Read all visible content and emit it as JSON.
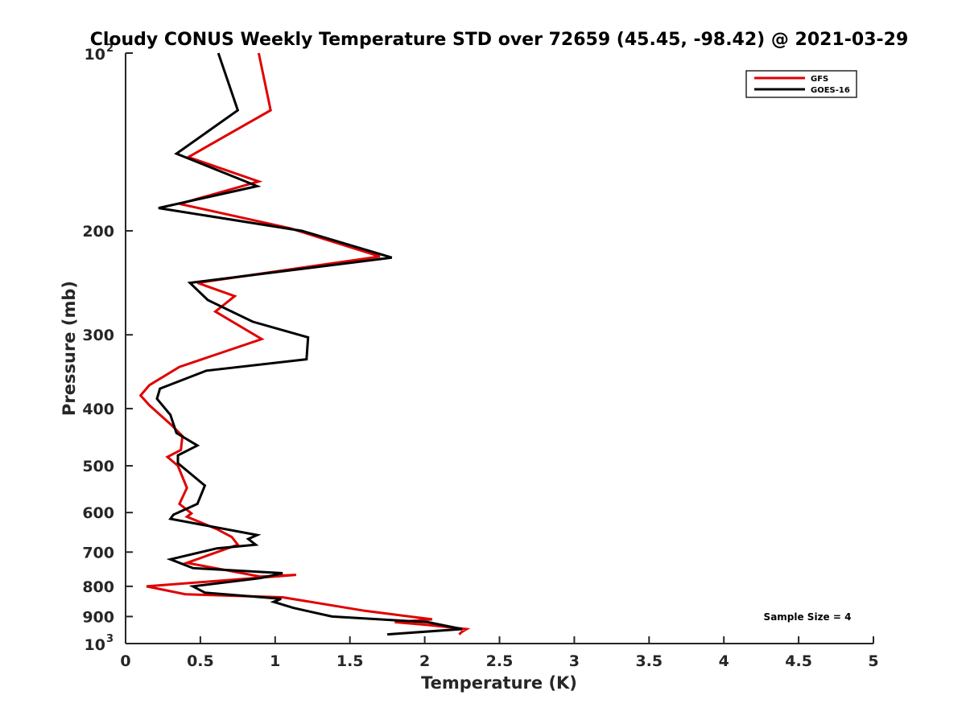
{
  "chart_data": {
    "type": "line",
    "title": "Cloudy CONUS Weekly Temperature STD over 72659 (45.45, -98.42) @ 2021-03-29",
    "xlabel": "Temperature (K)",
    "ylabel": "Pressure (mb)",
    "xlim": [
      0,
      5
    ],
    "ylim": [
      100,
      1000
    ],
    "y_scale": "log",
    "y_reversed": true,
    "x_ticks": [
      0,
      0.5,
      1,
      1.5,
      2,
      2.5,
      3,
      3.5,
      4,
      4.5,
      5
    ],
    "x_tick_labels": [
      "0",
      "0.5",
      "1",
      "1.5",
      "2",
      "2.5",
      "3",
      "3.5",
      "4",
      "4.5",
      "5"
    ],
    "y_ticks": [
      200,
      300,
      400,
      500,
      600,
      700,
      800,
      900
    ],
    "y_tick_labels": [
      "200",
      "300",
      "400",
      "500",
      "600",
      "700",
      "800",
      "900"
    ],
    "y_end_labels": [
      {
        "value": 100,
        "base": "10",
        "exp": "2"
      },
      {
        "value": 1000,
        "base": "10",
        "exp": "3"
      }
    ],
    "grid": false,
    "legend_position": "top-right",
    "series": [
      {
        "name": "GFS",
        "color": "#e00000",
        "points": [
          [
            0.89,
            100
          ],
          [
            0.97,
            125
          ],
          [
            0.42,
            150
          ],
          [
            0.89,
            165
          ],
          [
            0.36,
            180
          ],
          [
            1.1,
            198
          ],
          [
            1.7,
            221
          ],
          [
            0.48,
            245
          ],
          [
            0.73,
            258
          ],
          [
            0.6,
            274
          ],
          [
            0.91,
            305
          ],
          [
            0.36,
            340
          ],
          [
            0.16,
            365
          ],
          [
            0.1,
            380
          ],
          [
            0.16,
            395
          ],
          [
            0.3,
            425
          ],
          [
            0.38,
            445
          ],
          [
            0.37,
            470
          ],
          [
            0.28,
            483
          ],
          [
            0.35,
            500
          ],
          [
            0.41,
            545
          ],
          [
            0.36,
            580
          ],
          [
            0.44,
            602
          ],
          [
            0.41,
            610
          ],
          [
            0.61,
            640
          ],
          [
            0.71,
            660
          ],
          [
            0.75,
            680
          ],
          [
            0.41,
            730
          ],
          [
            0.9,
            770
          ],
          [
            1.14,
            765
          ],
          [
            0.14,
            800
          ],
          [
            0.4,
            825
          ],
          [
            1.05,
            835
          ],
          [
            1.6,
            880
          ],
          [
            2.05,
            910
          ],
          [
            1.8,
            920
          ],
          [
            2.02,
            930
          ],
          [
            2.28,
            945
          ],
          [
            2.25,
            955
          ],
          [
            2.23,
            965
          ]
        ]
      },
      {
        "name": "GOES-16",
        "color": "#000000",
        "points": [
          [
            0.62,
            100
          ],
          [
            0.75,
            125
          ],
          [
            0.34,
            148
          ],
          [
            0.88,
            168
          ],
          [
            0.22,
            183
          ],
          [
            1.18,
            200
          ],
          [
            1.78,
            222
          ],
          [
            0.43,
            245
          ],
          [
            0.55,
            262
          ],
          [
            0.85,
            285
          ],
          [
            1.22,
            303
          ],
          [
            1.21,
            330
          ],
          [
            0.54,
            345
          ],
          [
            0.23,
            370
          ],
          [
            0.21,
            385
          ],
          [
            0.3,
            410
          ],
          [
            0.34,
            440
          ],
          [
            0.48,
            462
          ],
          [
            0.35,
            480
          ],
          [
            0.35,
            495
          ],
          [
            0.53,
            540
          ],
          [
            0.48,
            580
          ],
          [
            0.32,
            605
          ],
          [
            0.3,
            615
          ],
          [
            0.88,
            655
          ],
          [
            0.82,
            665
          ],
          [
            0.87,
            680
          ],
          [
            0.61,
            690
          ],
          [
            0.3,
            720
          ],
          [
            0.45,
            745
          ],
          [
            1.05,
            760
          ],
          [
            0.9,
            775
          ],
          [
            0.45,
            800
          ],
          [
            0.53,
            820
          ],
          [
            1.04,
            840
          ],
          [
            0.99,
            850
          ],
          [
            1.12,
            870
          ],
          [
            1.38,
            900
          ],
          [
            2.02,
            920
          ],
          [
            2.25,
            945
          ],
          [
            1.75,
            965
          ]
        ]
      }
    ],
    "annotations": [
      {
        "text": "Sample Size = 4",
        "position": "bottom-right"
      }
    ]
  }
}
